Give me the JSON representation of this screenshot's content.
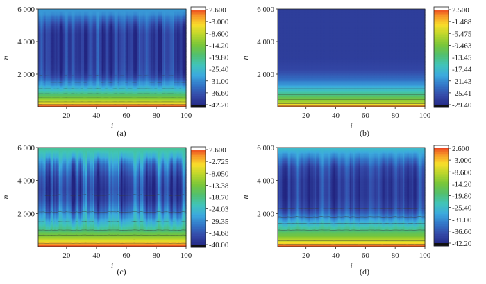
{
  "chart_data": [
    {
      "type": "heatmap",
      "caption": "(a)",
      "xlabel": "i",
      "ylabel": "n",
      "xlim": [
        1,
        100
      ],
      "ylim": [
        0,
        6000
      ],
      "xticks": [
        "20",
        "40",
        "60",
        "80",
        "100"
      ],
      "yticks": [
        "2 000",
        "4 000",
        "6 000"
      ],
      "colorbar": [
        "2.600",
        "-3.000",
        "-8.600",
        "-14.20",
        "-19.80",
        "-25.40",
        "-31.00",
        "-36.60",
        "-42.20"
      ],
      "colorbar_range": [
        -42.2,
        2.6
      ],
      "variation": "low",
      "profile": [
        [
          0,
          2.6
        ],
        [
          150,
          -3
        ],
        [
          300,
          -8.6
        ],
        [
          550,
          -14.2
        ],
        [
          800,
          -19.8
        ],
        [
          1100,
          -25.4
        ],
        [
          1500,
          -31
        ],
        [
          1900,
          -36.6
        ],
        [
          2300,
          -38
        ],
        [
          3000,
          -38.6
        ],
        [
          4500,
          -38.6
        ],
        [
          5000,
          -36.6
        ],
        [
          5400,
          -33
        ],
        [
          5750,
          -30
        ],
        [
          6000,
          -29
        ]
      ]
    },
    {
      "type": "heatmap",
      "caption": "(b)",
      "xlabel": "i",
      "ylabel": "n",
      "xlim": [
        1,
        100
      ],
      "ylim": [
        0,
        6000
      ],
      "xticks": [
        "20",
        "40",
        "60",
        "80",
        "100"
      ],
      "yticks": [
        "2 000",
        "4 000",
        "6 000"
      ],
      "colorbar": [
        "2.500",
        "-1.488",
        "-5.475",
        "-9.463",
        "-13.45",
        "-17.44",
        "-21.43",
        "-25.41",
        "-29.40"
      ],
      "colorbar_range": [
        -29.4,
        2.5
      ],
      "variation": "none",
      "profile": [
        [
          0,
          2.5
        ],
        [
          80,
          -1.5
        ],
        [
          200,
          -5.5
        ],
        [
          450,
          -9.5
        ],
        [
          750,
          -13.5
        ],
        [
          1100,
          -17.4
        ],
        [
          1500,
          -21.4
        ],
        [
          1800,
          -23.5
        ],
        [
          2300,
          -26
        ],
        [
          3000,
          -26.8
        ],
        [
          6000,
          -26.8
        ]
      ]
    },
    {
      "type": "heatmap",
      "caption": "(c)",
      "xlabel": "i",
      "ylabel": "n",
      "xlim": [
        1,
        100
      ],
      "ylim": [
        0,
        6000
      ],
      "xticks": [
        "20",
        "40",
        "60",
        "80",
        "100"
      ],
      "yticks": [
        "2 000",
        "4 000",
        "6 000"
      ],
      "colorbar": [
        "2.600",
        "-2.725",
        "-8.050",
        "-13.38",
        "-18.70",
        "-24.03",
        "-29.35",
        "-34.68",
        "-40.00"
      ],
      "colorbar_range": [
        -40.0,
        2.6
      ],
      "variation": "high",
      "profile": [
        [
          0,
          2.6
        ],
        [
          200,
          -2.7
        ],
        [
          400,
          -8
        ],
        [
          700,
          -13.4
        ],
        [
          1000,
          -18.7
        ],
        [
          1500,
          -24
        ],
        [
          2100,
          -29.4
        ],
        [
          2800,
          -34
        ],
        [
          3500,
          -35.5
        ],
        [
          4200,
          -34
        ],
        [
          5000,
          -29.4
        ],
        [
          5500,
          -24
        ],
        [
          6000,
          -20
        ]
      ]
    },
    {
      "type": "heatmap",
      "caption": "(d)",
      "xlabel": "i",
      "ylabel": "n",
      "xlim": [
        1,
        100
      ],
      "ylim": [
        0,
        6000
      ],
      "xticks": [
        "20",
        "40",
        "60",
        "80",
        "100"
      ],
      "yticks": [
        "2 000",
        "4 000",
        "6 000"
      ],
      "colorbar": [
        "2.600",
        "-3.000",
        "-8.600",
        "-14.20",
        "-19.80",
        "-25.40",
        "-31.00",
        "-36.60",
        "-42.20"
      ],
      "colorbar_range": [
        -42.2,
        2.6
      ],
      "variation": "medium",
      "profile": [
        [
          0,
          2.6
        ],
        [
          150,
          -3
        ],
        [
          350,
          -8.6
        ],
        [
          650,
          -14.2
        ],
        [
          1000,
          -19.8
        ],
        [
          1400,
          -25.4
        ],
        [
          1800,
          -31
        ],
        [
          2300,
          -36.6
        ],
        [
          3000,
          -38.5
        ],
        [
          4000,
          -38.5
        ],
        [
          4800,
          -36.6
        ],
        [
          5400,
          -31
        ],
        [
          5800,
          -27
        ],
        [
          6000,
          -25
        ]
      ]
    }
  ]
}
